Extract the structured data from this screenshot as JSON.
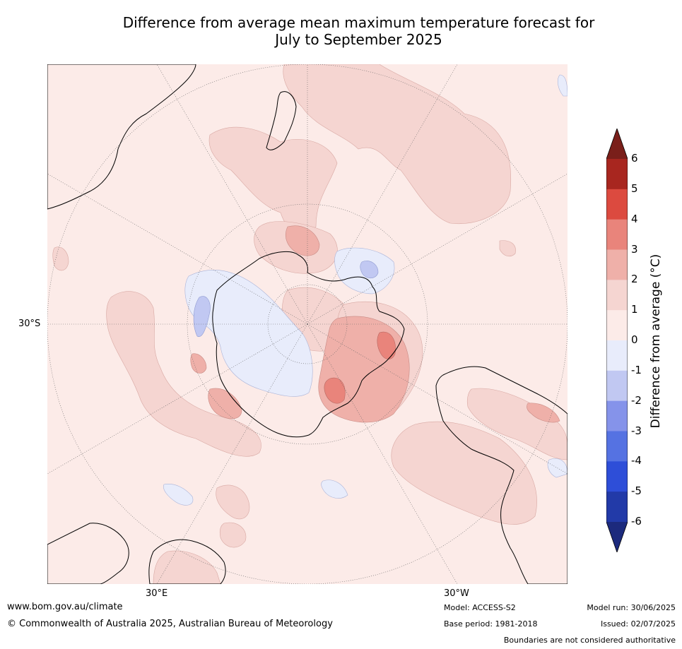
{
  "title_line1": "Difference from average mean maximum temperature forecast for",
  "title_line2": "July to September 2025",
  "map": {
    "lat_labels": [
      "30°S"
    ],
    "lon_labels": [
      "30°E",
      "30°W"
    ]
  },
  "legend": {
    "label": "Difference from average (°C)",
    "ticks": [
      "6",
      "5",
      "4",
      "3",
      "2",
      "1",
      "0",
      "-1",
      "-2",
      "-3",
      "-4",
      "-5",
      "-6"
    ],
    "colors": {
      "above_6": "#7a1f1a",
      "5_6": "#a8261f",
      "4_5": "#dc4a3f",
      "3_4": "#e9847b",
      "2_3": "#efb0a9",
      "1_2": "#f5d5d1",
      "0_1": "#fcebe8",
      "m1_0": "#e8ecfb",
      "m2_m1": "#c1c8f2",
      "m3_m2": "#8593ea",
      "m4_m3": "#5572e2",
      "m5_m4": "#2e4ed8",
      "m6_m5": "#223aa8",
      "below_m6": "#1c2a7d"
    }
  },
  "footer": {
    "website": "www.bom.gov.au/climate",
    "copyright": "© Commonwealth of Australia 2025, Australian Bureau of Meteorology",
    "model": "Model: ACCESS-S2",
    "base_period": "Base period: 1981-2018",
    "model_run": "Model run: 30/06/2025",
    "issued": "Issued: 02/07/2025",
    "disclaimer": "Boundaries are not considered authoritative"
  }
}
